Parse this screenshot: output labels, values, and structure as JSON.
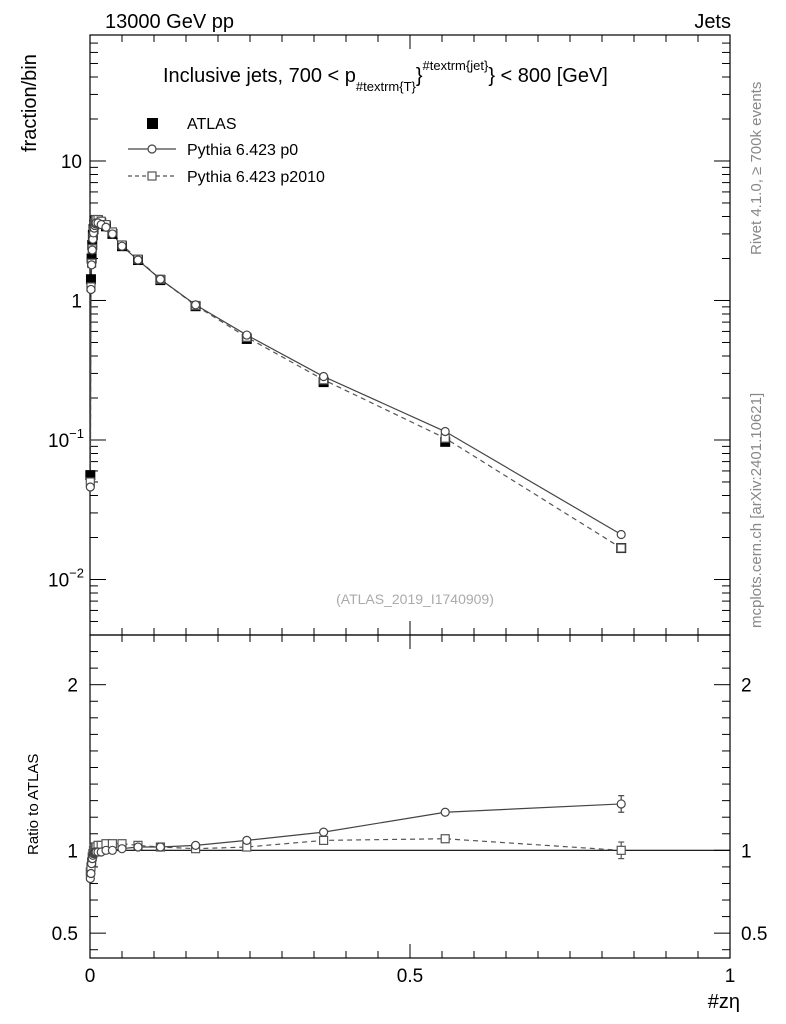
{
  "header": {
    "left_label": "13000 GeV pp",
    "right_label": "Jets"
  },
  "side_labels": {
    "rivet": "Rivet 4.1.0, ≥ 700k events",
    "mcplots": "mcplots.cern.ch [arXiv:2401.10621]"
  },
  "chart_data": {
    "type": "scatter",
    "title": {
      "prefix": "Inclusive jets, 700 < p",
      "subscript": "#textrm{T}",
      "superscript": "#textrm{jet}",
      "suffix": "} < 800 [GeV]"
    },
    "analysis_id": "(ATLAS_2019_I1740909)",
    "xlabel": "#zη",
    "ylabel_main": "fraction/bin",
    "ylabel_ratio": "Ratio to ATLAS",
    "xlim": [
      0,
      1
    ],
    "main_ylim_log": [
      0.004,
      80
    ],
    "ratio_ylim": [
      0.35,
      2.3
    ],
    "x_tick_labels": [
      "0",
      "0.5",
      "1"
    ],
    "main_y_tick_labels": [
      {
        "value": 10,
        "base": "10",
        "exp": ""
      },
      {
        "value": 1,
        "base": "1",
        "exp": ""
      },
      {
        "value": 0.1,
        "base": "10",
        "exp": "−1"
      },
      {
        "value": 0.01,
        "base": "10",
        "exp": "−2"
      }
    ],
    "ratio_y_tick_labels": [
      "2",
      "1",
      "0.5"
    ],
    "legend_location": "top-left",
    "series": [
      {
        "name": "ATLAS",
        "style": "filled-square",
        "color": "#000000",
        "x": [
          0.0005,
          0.0015,
          0.0025,
          0.0035,
          0.0045,
          0.0055,
          0.0065,
          0.0075,
          0.0085,
          0.0095,
          0.0125,
          0.0175,
          0.025,
          0.035,
          0.05,
          0.075,
          0.11,
          0.165,
          0.245,
          0.365,
          0.555,
          0.83
        ],
        "y": [
          0.056,
          1.42,
          2.0,
          2.5,
          2.95,
          3.25,
          3.5,
          3.65,
          3.75,
          3.78,
          3.75,
          3.6,
          3.4,
          3.0,
          2.45,
          1.95,
          1.4,
          0.91,
          0.53,
          0.26,
          0.097,
          0.0168
        ]
      },
      {
        "name": "Pythia 6.423 p0",
        "style": "open-circle-solid",
        "color": "#444444",
        "x": [
          0.0005,
          0.0015,
          0.0025,
          0.0035,
          0.0045,
          0.0055,
          0.0065,
          0.0075,
          0.0085,
          0.0095,
          0.0125,
          0.0175,
          0.025,
          0.035,
          0.05,
          0.075,
          0.11,
          0.165,
          0.245,
          0.365,
          0.555,
          0.83
        ],
        "y": [
          0.046,
          1.2,
          1.8,
          2.3,
          2.75,
          3.05,
          3.3,
          3.45,
          3.55,
          3.6,
          3.6,
          3.5,
          3.35,
          3.0,
          2.45,
          1.95,
          1.42,
          0.93,
          0.565,
          0.285,
          0.115,
          0.021
        ],
        "ratio": [
          0.83,
          0.86,
          0.92,
          0.95,
          0.97,
          0.98,
          0.985,
          0.99,
          0.99,
          0.99,
          0.99,
          0.99,
          1.0,
          1.0,
          1.01,
          1.02,
          1.02,
          1.03,
          1.06,
          1.11,
          1.23,
          1.28
        ],
        "ratio_err_index": [
          21
        ],
        "ratio_err": [
          0.05
        ]
      },
      {
        "name": "Pythia 6.423 p2010",
        "style": "open-square-dashed",
        "color": "#555555",
        "x": [
          0.0005,
          0.0015,
          0.0025,
          0.0035,
          0.0045,
          0.0055,
          0.0065,
          0.0075,
          0.0085,
          0.0095,
          0.0125,
          0.0175,
          0.025,
          0.035,
          0.05,
          0.075,
          0.11,
          0.165,
          0.245,
          0.365,
          0.555,
          0.83
        ],
        "y": [
          0.05,
          1.25,
          1.85,
          2.35,
          2.85,
          3.15,
          3.45,
          3.6,
          3.75,
          3.8,
          3.8,
          3.7,
          3.5,
          3.1,
          2.5,
          1.98,
          1.42,
          0.92,
          0.545,
          0.27,
          0.103,
          0.0168
        ],
        "ratio": [
          0.87,
          0.9,
          0.93,
          0.96,
          0.98,
          1.0,
          1.01,
          1.02,
          1.02,
          1.02,
          1.03,
          1.03,
          1.04,
          1.04,
          1.04,
          1.03,
          1.02,
          1.01,
          1.02,
          1.06,
          1.07,
          1.0
        ],
        "ratio_err_index": [
          21
        ],
        "ratio_err": [
          0.05
        ]
      }
    ]
  }
}
